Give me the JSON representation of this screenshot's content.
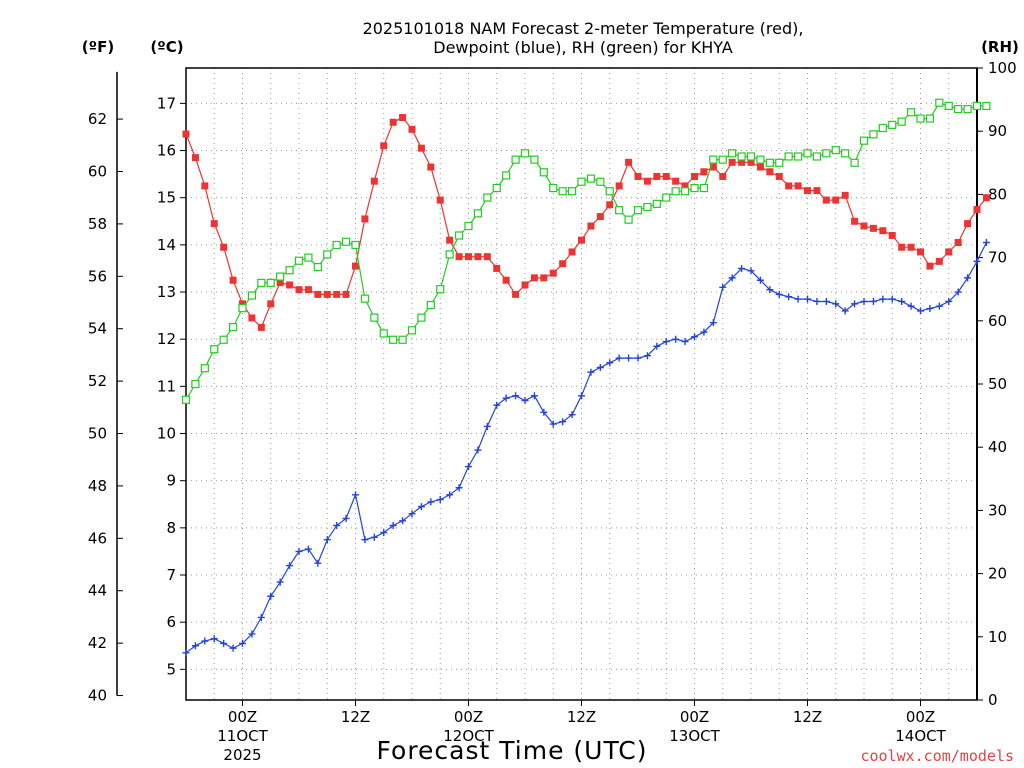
{
  "chart_data": {
    "type": "line",
    "title_lines": [
      "2025101018 NAM Forecast 2-meter Temperature (red),",
      "Dewpoint (blue), RH (green) for KHYA"
    ],
    "xlabel": "Forecast Time (UTC)",
    "units": {
      "f": "(ºF)",
      "c": "(ºC)",
      "rh": "(RH)"
    },
    "credit": "coolwx.com/models",
    "x_range_hours": [
      0,
      84
    ],
    "x_ticks": [
      {
        "hour": 6,
        "label": "00Z",
        "date": "11OCT",
        "year": "2025"
      },
      {
        "hour": 18,
        "label": "12Z",
        "date": "",
        "year": ""
      },
      {
        "hour": 30,
        "label": "00Z",
        "date": "12OCT",
        "year": ""
      },
      {
        "hour": 42,
        "label": "12Z",
        "date": "",
        "year": ""
      },
      {
        "hour": 54,
        "label": "00Z",
        "date": "13OCT",
        "year": ""
      },
      {
        "hour": 66,
        "label": "12Z",
        "date": "",
        "year": ""
      },
      {
        "hour": 78,
        "label": "00Z",
        "date": "14OCT",
        "year": ""
      }
    ],
    "y_celsius_range": [
      4.35,
      17.75
    ],
    "y_celsius_ticks": [
      5,
      6,
      7,
      8,
      9,
      10,
      11,
      12,
      13,
      14,
      15,
      16,
      17
    ],
    "y_fahrenheit_ticks": [
      40,
      42,
      44,
      46,
      48,
      50,
      52,
      54,
      56,
      58,
      60,
      62
    ],
    "y_rh_range": [
      0,
      100
    ],
    "y_rh_ticks": [
      0,
      10,
      20,
      30,
      40,
      50,
      60,
      70,
      80,
      90,
      100
    ],
    "series": [
      {
        "name": "2-meter Temperature (°C)",
        "color": "#ee3333",
        "marker": "filled-square",
        "axis": "celsius",
        "values": [
          16.35,
          15.85,
          15.25,
          14.45,
          13.95,
          13.25,
          12.75,
          12.45,
          12.25,
          12.75,
          13.2,
          13.15,
          13.05,
          13.05,
          12.95,
          12.95,
          12.95,
          12.95,
          13.55,
          14.55,
          15.35,
          16.1,
          16.6,
          16.7,
          16.45,
          16.05,
          15.65,
          14.95,
          14.1,
          13.75,
          13.75,
          13.75,
          13.75,
          13.5,
          13.25,
          12.95,
          13.15,
          13.3,
          13.3,
          13.4,
          13.6,
          13.85,
          14.1,
          14.4,
          14.6,
          14.85,
          15.25,
          15.75,
          15.45,
          15.35,
          15.45,
          15.45,
          15.35,
          15.25,
          15.45,
          15.55,
          15.65,
          15.45,
          15.75,
          15.75,
          15.75,
          15.65,
          15.55,
          15.45,
          15.25,
          15.25,
          15.15,
          15.15,
          14.95,
          14.95,
          15.05,
          14.5,
          14.4,
          14.35,
          14.3,
          14.2,
          13.95,
          13.95,
          13.85,
          13.55,
          13.65,
          13.85,
          14.05,
          14.45,
          14.75,
          15.0
        ]
      },
      {
        "name": "Dewpoint (°C)",
        "color": "#2244dd",
        "marker": "plus",
        "axis": "celsius",
        "values": [
          5.35,
          5.5,
          5.6,
          5.65,
          5.55,
          5.45,
          5.55,
          5.75,
          6.1,
          6.55,
          6.85,
          7.2,
          7.5,
          7.55,
          7.25,
          7.75,
          8.05,
          8.2,
          8.7,
          7.75,
          7.8,
          7.9,
          8.05,
          8.15,
          8.3,
          8.45,
          8.55,
          8.6,
          8.7,
          8.85,
          9.3,
          9.65,
          10.15,
          10.6,
          10.75,
          10.8,
          10.7,
          10.8,
          10.45,
          10.2,
          10.25,
          10.4,
          10.8,
          11.3,
          11.4,
          11.5,
          11.6,
          11.6,
          11.6,
          11.65,
          11.85,
          11.95,
          12.0,
          11.95,
          12.05,
          12.15,
          12.35,
          13.1,
          13.3,
          13.5,
          13.45,
          13.25,
          13.05,
          12.95,
          12.9,
          12.85,
          12.85,
          12.8,
          12.8,
          12.75,
          12.6,
          12.75,
          12.8,
          12.8,
          12.85,
          12.85,
          12.8,
          12.7,
          12.6,
          12.65,
          12.7,
          12.8,
          13.0,
          13.3,
          13.65,
          14.05
        ]
      },
      {
        "name": "RH (%)",
        "color": "#22cc22",
        "marker": "open-square",
        "axis": "rh",
        "values": [
          47.5,
          50.0,
          52.5,
          55.5,
          57.0,
          59.0,
          62.0,
          64.0,
          66.0,
          66.0,
          67.0,
          68.0,
          69.5,
          70.0,
          68.5,
          70.5,
          72.0,
          72.5,
          72.0,
          63.5,
          60.5,
          58.0,
          57.0,
          57.0,
          58.5,
          60.5,
          62.5,
          65.0,
          70.5,
          73.5,
          75.0,
          77.0,
          79.5,
          81.0,
          83.0,
          85.5,
          86.5,
          85.5,
          83.5,
          81.0,
          80.5,
          80.5,
          82.0,
          82.5,
          82.0,
          80.5,
          77.5,
          76.0,
          77.5,
          78.0,
          78.5,
          79.5,
          80.5,
          80.5,
          81.0,
          81.0,
          85.5,
          85.5,
          86.5,
          86.0,
          86.0,
          85.5,
          85.0,
          85.0,
          86.0,
          86.0,
          86.5,
          86.0,
          86.5,
          87.0,
          86.5,
          85.0,
          88.5,
          89.5,
          90.5,
          91.0,
          91.5,
          93.0,
          92.0,
          92.0,
          94.5,
          94.0,
          93.5,
          93.5,
          94.0,
          94.0
        ]
      }
    ]
  }
}
